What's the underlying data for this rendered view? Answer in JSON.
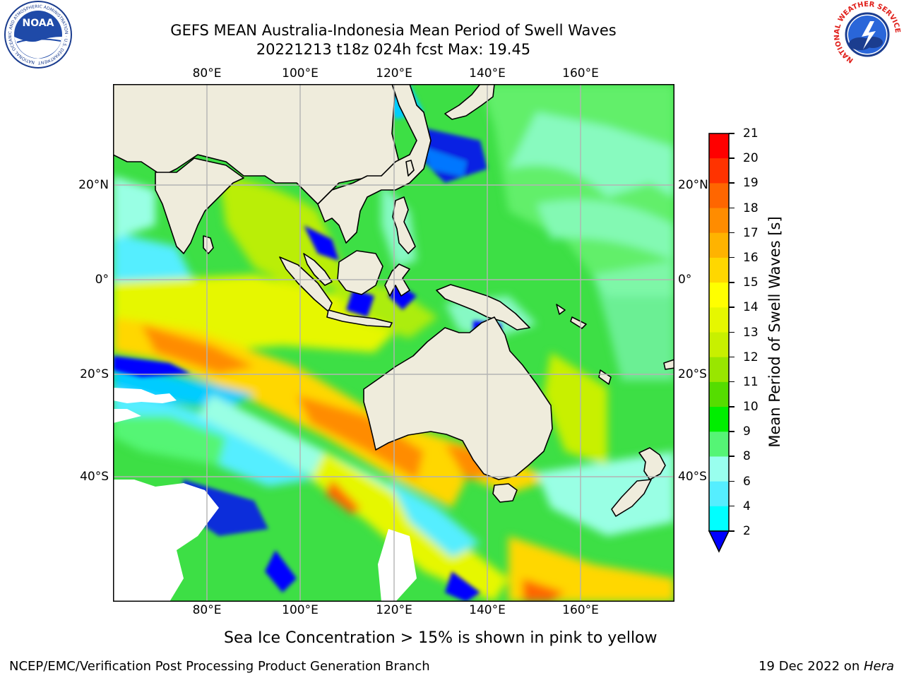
{
  "header": {
    "title_line1": "GEFS MEAN Australia-Indonesia Mean Period of Swell Waves",
    "title_line2": "20221213 t18z 024h fcst   Max: 19.45"
  },
  "map": {
    "lon_ticks": [
      "80°E",
      "100°E",
      "120°E",
      "140°E",
      "160°E"
    ],
    "lat_ticks": [
      "20°N",
      "0°",
      "20°S",
      "40°S"
    ]
  },
  "colorbar": {
    "label": "Mean Period of Swell Waves [s]",
    "ticks": [
      "21",
      "20",
      "19",
      "18",
      "17",
      "16",
      "15",
      "14",
      "13",
      "12",
      "11",
      "10",
      "9",
      "8",
      "6",
      "4",
      "2"
    ],
    "colors": [
      "#ff0000",
      "#ff3300",
      "#ff6600",
      "#ff8c00",
      "#ffb300",
      "#ffd700",
      "#ffff00",
      "#e6f700",
      "#c8f000",
      "#99e600",
      "#55dd00",
      "#00ee00",
      "#55f575",
      "#99ffee",
      "#55eeff",
      "#00ffff",
      "#00ccff",
      "#0077ff",
      "#0000ff"
    ],
    "extend": "min"
  },
  "footnote": "Sea Ice Concentration > 15% is shown in pink to yellow",
  "footer": {
    "left": "NCEP/EMC/Verification Post Processing Product Generation Branch",
    "right_date": "19 Dec 2022 on ",
    "right_host": "Hera"
  },
  "logos": {
    "noaa_text": "NOAA",
    "noaa_ring_text": "NATIONAL OCEANIC AND ATMOSPHERIC ADMINISTRATION · U.S. DEPARTMENT OF COMMERCE",
    "nws_ring_text": "NATIONAL WEATHER SERVICE"
  }
}
